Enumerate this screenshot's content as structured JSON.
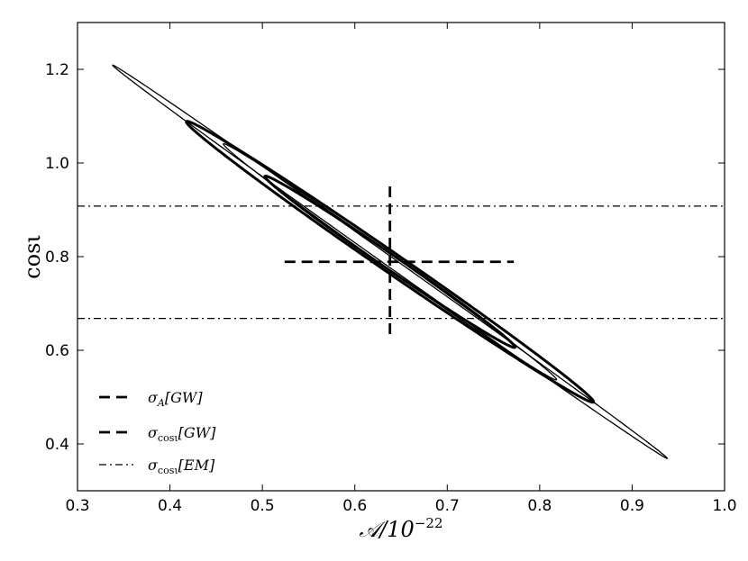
{
  "chart_data": {
    "type": "line",
    "xlabel": "𝒜/10",
    "xlabel_exponent": "−22",
    "ylabel": "cosι",
    "xlim": [
      0.3,
      1.0
    ],
    "ylim": [
      0.3,
      1.3
    ],
    "xticks": [
      0.3,
      0.4,
      0.5,
      0.6,
      0.7,
      0.8,
      0.9,
      1.0
    ],
    "xtick_labels": [
      "0.3",
      "0.4",
      "0.5",
      "0.6",
      "0.7",
      "0.8",
      "0.9",
      "1.0"
    ],
    "yticks": [
      0.4,
      0.6,
      0.8,
      1.0,
      1.2
    ],
    "ytick_labels": [
      "0.4",
      "0.6",
      "0.8",
      "1.0",
      "1.2"
    ],
    "grid": false,
    "legend_position": "lower-left",
    "ellipses": [
      {
        "cx": 0.638,
        "cy": 0.789,
        "u": [
          0.3,
          -0.42
        ],
        "v": [
          -0.0055,
          -0.0047
        ],
        "weight": "thin"
      },
      {
        "cx": 0.638,
        "cy": 0.789,
        "u": [
          0.22,
          -0.3
        ],
        "v": [
          -0.0122,
          -0.0092
        ],
        "weight": "thick"
      },
      {
        "cx": 0.638,
        "cy": 0.789,
        "u": [
          0.18,
          -0.252
        ],
        "v": [
          -0.0082,
          -0.0064
        ],
        "weight": "thin"
      },
      {
        "cx": 0.638,
        "cy": 0.789,
        "u": [
          0.135,
          -0.183
        ],
        "v": [
          -0.009,
          -0.0065
        ],
        "weight": "thick"
      }
    ],
    "sigma_A_GW": {
      "y": 0.789,
      "x_range": [
        0.524,
        0.772
      ]
    },
    "sigma_cos_GW": {
      "x": 0.638,
      "y_range": [
        0.628,
        0.95
      ]
    },
    "sigma_cos_EM": {
      "lines_y": [
        0.908,
        0.668
      ]
    },
    "legend": [
      {
        "key": "sigma_A_GW",
        "symbol": "σ",
        "subscript": "A",
        "label": "[GW]",
        "style": "dashed"
      },
      {
        "key": "sigma_cos_GW",
        "symbol": "σ",
        "subscript": "cosι",
        "label": "[GW]",
        "style": "dashed"
      },
      {
        "key": "sigma_cos_EM",
        "symbol": "σ",
        "subscript": "cosι",
        "label": "[EM]",
        "style": "dash-dot"
      }
    ]
  }
}
